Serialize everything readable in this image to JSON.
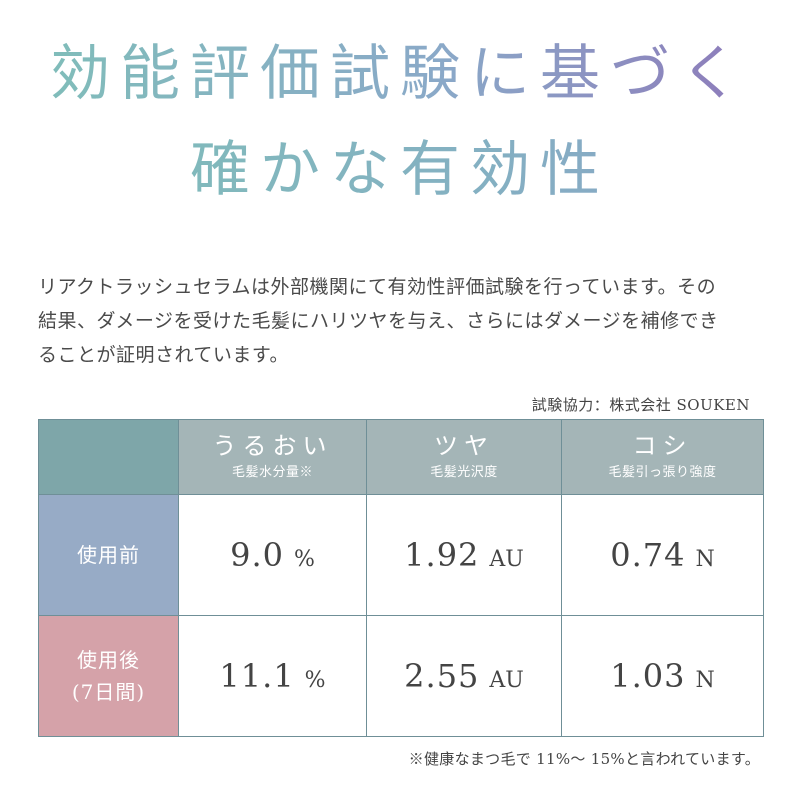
{
  "headline": {
    "line1": "効能評価試験に基づく",
    "line2": "確かな有効性"
  },
  "description": [
    "リアクトラッシュセラムは外部機関にて有効性評価試験を行っています。その",
    "結果、ダメージを受けた毛髪にハリツヤを与え、さらにはダメージを補修でき",
    "ることが証明されています。"
  ],
  "credit": "試験協力：株式会社 SOUKEN",
  "table": {
    "columns": [
      {
        "title": "うるおい",
        "subtitle": "毛髪水分量※"
      },
      {
        "title": "ツヤ",
        "subtitle": "毛髪光沢度"
      },
      {
        "title": "コシ",
        "subtitle": "毛髪引っ張り強度"
      }
    ],
    "rows": [
      {
        "label_line1": "使用前",
        "label_line2": "",
        "values": [
          {
            "value": "9.0",
            "unit": "%"
          },
          {
            "value": "1.92",
            "unit": "AU"
          },
          {
            "value": "0.74",
            "unit": "N"
          }
        ]
      },
      {
        "label_line1": "使用後",
        "label_line2": "(7日間)",
        "values": [
          {
            "value": "11.1",
            "unit": "%"
          },
          {
            "value": "2.55",
            "unit": "AU"
          },
          {
            "value": "1.03",
            "unit": "N"
          }
        ]
      }
    ]
  },
  "footnote": "※健康なまつ毛で 11%～ 15%と言われています。",
  "colors": {
    "header_bg": "#a4b5b7",
    "corner_bg": "#7ea6a9",
    "before_bg": "#97abc6",
    "after_bg": "#d5a2a9",
    "border": "#6f8f97"
  }
}
